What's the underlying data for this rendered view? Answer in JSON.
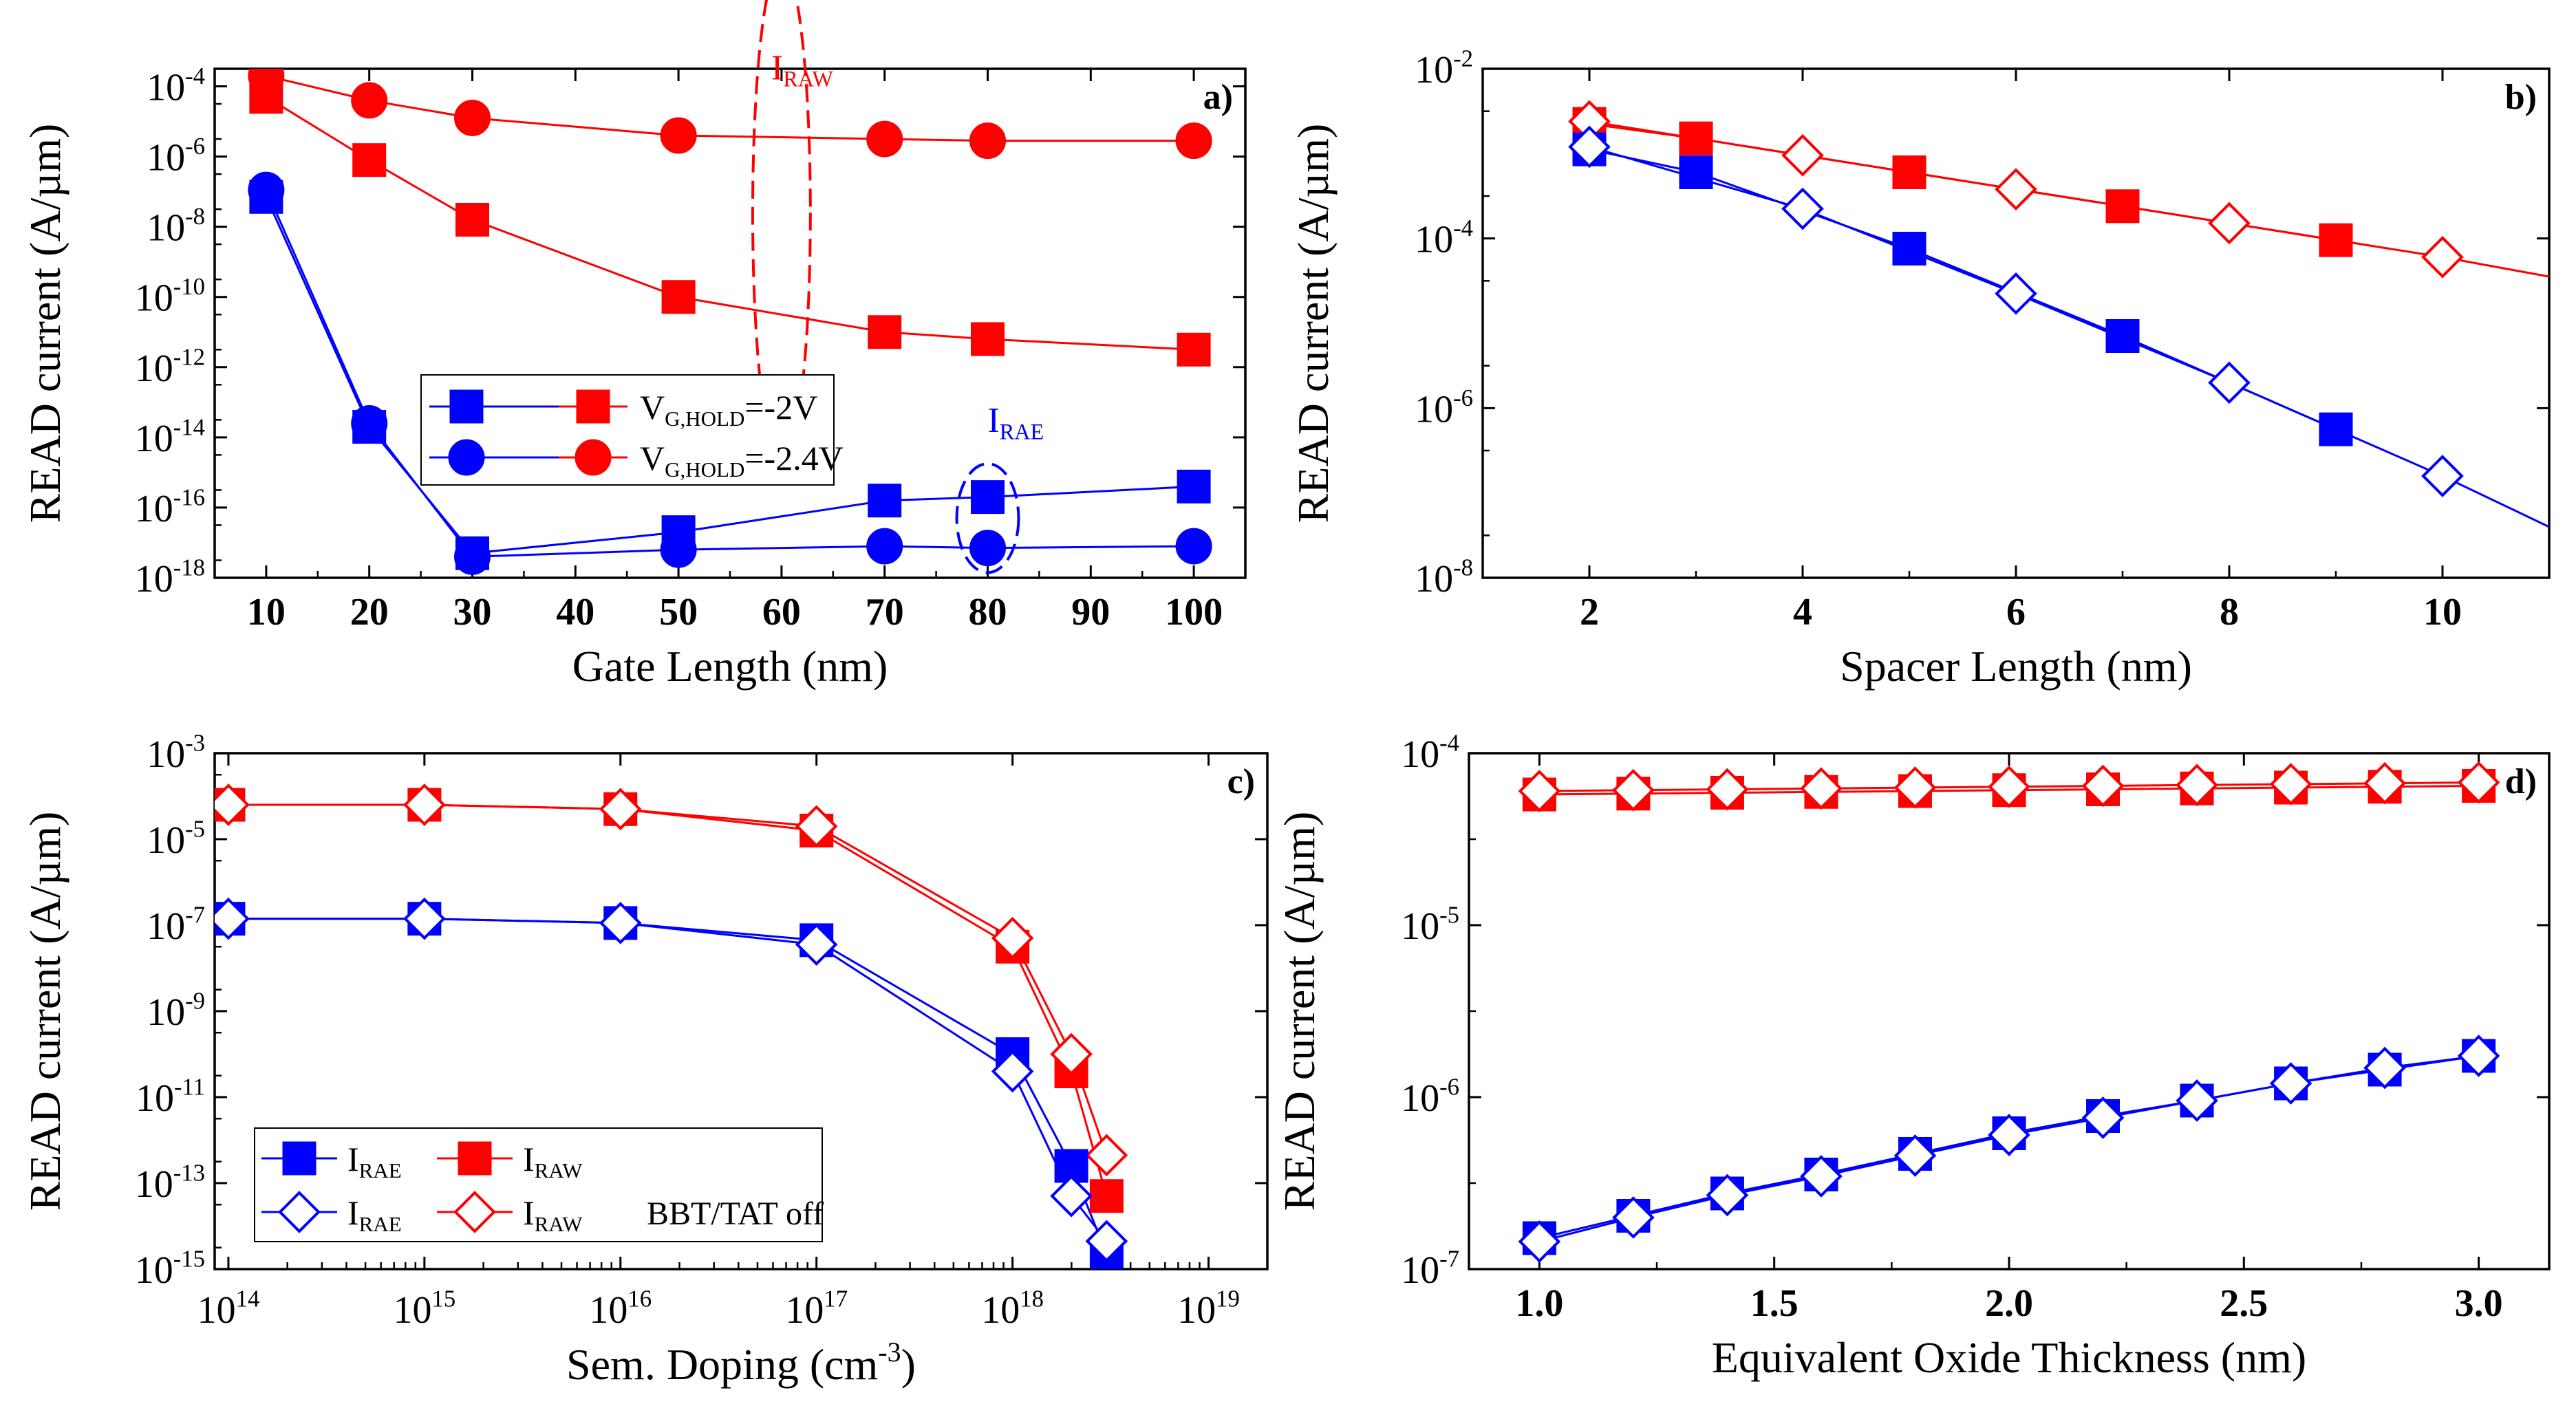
{
  "figure": {
    "colors": {
      "red": "#ff0000",
      "blue": "#0000ff",
      "axis": "#000000"
    }
  },
  "chart_data": [
    {
      "id": "a",
      "panel_label": "a)",
      "type": "line",
      "xscale": "linear",
      "yscale": "log",
      "xlim": [
        5,
        105
      ],
      "ylim_exp": [
        -18,
        -3.5
      ],
      "xticks": [
        10,
        20,
        30,
        40,
        50,
        60,
        70,
        80,
        90,
        100
      ],
      "xtick_labels": [
        "10",
        "20",
        "30",
        "40",
        "50",
        "60",
        "70",
        "80",
        "90",
        "100"
      ],
      "yticks_exp": [
        -18,
        -16,
        -14,
        -12,
        -10,
        -8,
        -6,
        -4
      ],
      "ytick_labels": [
        {
          "base": "10",
          "exp": "-18"
        },
        {
          "base": "10",
          "exp": "-16"
        },
        {
          "base": "10",
          "exp": "-14"
        },
        {
          "base": "10",
          "exp": "-12"
        },
        {
          "base": "10",
          "exp": "-10"
        },
        {
          "base": "10",
          "exp": "-8"
        },
        {
          "base": "10",
          "exp": "-6"
        },
        {
          "base": "10",
          "exp": "-4"
        }
      ],
      "xlabel": "Gate Length (nm)",
      "ylabel": "READ current (A/µm)",
      "series": [
        {
          "name": "I_RAW, V_G,HOLD=-2V",
          "color": "red",
          "marker": "square",
          "filled": true,
          "x": [
            10,
            20,
            30,
            50,
            70,
            80,
            100
          ],
          "y_exp": [
            -4.3,
            -6.1,
            -7.8,
            -10.0,
            -11.0,
            -11.2,
            -11.5
          ]
        },
        {
          "name": "I_RAW, V_G,HOLD=-2.4V",
          "color": "red",
          "marker": "circle",
          "filled": true,
          "x": [
            10,
            20,
            30,
            50,
            70,
            80,
            100
          ],
          "y_exp": [
            -3.7,
            -4.4,
            -4.9,
            -5.4,
            -5.5,
            -5.55,
            -5.55
          ]
        },
        {
          "name": "I_RAE, V_G,HOLD=-2V",
          "color": "blue",
          "marker": "square",
          "filled": true,
          "x": [
            10,
            20,
            30,
            50,
            70,
            80,
            100
          ],
          "y_exp": [
            -7.15,
            -13.7,
            -17.3,
            -16.7,
            -15.8,
            -15.7,
            -15.4
          ]
        },
        {
          "name": "I_RAE, V_G,HOLD=-2.4V",
          "color": "blue",
          "marker": "circle",
          "filled": true,
          "x": [
            10,
            20,
            30,
            50,
            70,
            80,
            100
          ],
          "y_exp": [
            -6.95,
            -13.6,
            -17.4,
            -17.2,
            -17.1,
            -17.15,
            -17.1
          ]
        }
      ],
      "annotations": [
        {
          "base": "I",
          "sub": "RAW",
          "color": "red",
          "x": 61,
          "y_exp": -3.8
        },
        {
          "base": "I",
          "sub": "RAE",
          "color": "blue",
          "x": 82,
          "y_exp": -13.85
        }
      ],
      "ellipses": [
        {
          "color": "red",
          "cx": 60,
          "cy_exp": -7.6,
          "rx": 2.8,
          "ry_exp": 7.1
        },
        {
          "color": "blue",
          "cx": 80,
          "cy_exp": -16.3,
          "rx": 3.0,
          "ry_exp": 1.55
        }
      ],
      "legend": {
        "position": "center",
        "entries": [
          {
            "base": "V",
            "sub": "G,HOLD",
            "rest": "=-2V",
            "marker": "square"
          },
          {
            "base": "V",
            "sub": "G,HOLD",
            "rest": "=-2.4V",
            "marker": "circle"
          }
        ]
      }
    },
    {
      "id": "b",
      "panel_label": "b)",
      "type": "line",
      "xscale": "linear",
      "yscale": "log",
      "xlim": [
        1,
        11
      ],
      "ylim_exp": [
        -8,
        -2
      ],
      "xticks": [
        2,
        4,
        6,
        8,
        10
      ],
      "xtick_labels": [
        "2",
        "4",
        "6",
        "8",
        "10"
      ],
      "yticks_exp": [
        -8,
        -6,
        -4,
        -2
      ],
      "ytick_labels": [
        {
          "base": "10",
          "exp": "-8"
        },
        {
          "base": "10",
          "exp": "-6"
        },
        {
          "base": "10",
          "exp": "-4"
        },
        {
          "base": "10",
          "exp": "-2"
        }
      ],
      "xlabel": "Spacer Length (nm)",
      "ylabel": "READ current (A/µm)",
      "series": [
        {
          "name": "I_RAW",
          "color": "red",
          "marker": "square",
          "filled": true,
          "x": [
            2,
            3,
            5,
            7,
            9
          ],
          "y_exp": [
            -2.65,
            -2.82,
            -3.22,
            -3.62,
            -4.02
          ]
        },
        {
          "name": "I_RAW BBT/TAT off",
          "color": "red",
          "marker": "diamond",
          "filled": false,
          "x": [
            2,
            4,
            6,
            8,
            10,
            11
          ],
          "y_exp": [
            -2.62,
            -3.02,
            -3.42,
            -3.82,
            -4.22,
            -4.45
          ]
        },
        {
          "name": "I_RAE",
          "color": "blue",
          "marker": "square",
          "filled": true,
          "x": [
            2,
            3,
            5,
            7,
            9
          ],
          "y_exp": [
            -2.95,
            -3.22,
            -4.12,
            -5.15,
            -6.25
          ]
        },
        {
          "name": "I_RAE BBT/TAT off",
          "color": "blue",
          "marker": "diamond",
          "filled": false,
          "x": [
            2,
            4,
            6,
            8,
            10,
            11
          ],
          "y_exp": [
            -2.92,
            -3.65,
            -4.65,
            -5.7,
            -6.8,
            -7.4
          ]
        }
      ],
      "annotations": [],
      "ellipses": [],
      "legend": null
    },
    {
      "id": "c",
      "panel_label": "c)",
      "type": "line",
      "xscale": "log",
      "yscale": "log",
      "xlim_exp": [
        13.93,
        19.3
      ],
      "ylim_exp": [
        -15,
        -3
      ],
      "xticks_exp": [
        14,
        15,
        16,
        17,
        18,
        19
      ],
      "xtick_labels": [
        {
          "base": "10",
          "exp": "14"
        },
        {
          "base": "10",
          "exp": "15"
        },
        {
          "base": "10",
          "exp": "16"
        },
        {
          "base": "10",
          "exp": "17"
        },
        {
          "base": "10",
          "exp": "18"
        },
        {
          "base": "10",
          "exp": "19"
        }
      ],
      "yticks_exp": [
        -15,
        -13,
        -11,
        -9,
        -7,
        -5,
        -3
      ],
      "ytick_labels": [
        {
          "base": "10",
          "exp": "-15"
        },
        {
          "base": "10",
          "exp": "-13"
        },
        {
          "base": "10",
          "exp": "-11"
        },
        {
          "base": "10",
          "exp": "-9"
        },
        {
          "base": "10",
          "exp": "-7"
        },
        {
          "base": "10",
          "exp": "-5"
        },
        {
          "base": "10",
          "exp": "-3"
        }
      ],
      "xlabel": {
        "base": "Sem. Doping (cm",
        "exp": "-3",
        "rest": ")"
      },
      "ylabel": "READ current (A/µm)",
      "series": [
        {
          "name": "I_RAW",
          "color": "red",
          "marker": "square",
          "filled": true,
          "x_exp": [
            14,
            15,
            16,
            17,
            18,
            18.3,
            18.48
          ],
          "y_exp": [
            -4.2,
            -4.2,
            -4.3,
            -4.8,
            -7.5,
            -10.4,
            -13.3
          ]
        },
        {
          "name": "I_RAW BBT/TAT off",
          "color": "red",
          "marker": "diamond",
          "filled": false,
          "x_exp": [
            14,
            15,
            16,
            17,
            18,
            18.3,
            18.48
          ],
          "y_exp": [
            -4.2,
            -4.2,
            -4.3,
            -4.7,
            -7.3,
            -10.0,
            -12.35
          ]
        },
        {
          "name": "I_RAE",
          "color": "blue",
          "marker": "square",
          "filled": true,
          "x_exp": [
            14,
            15,
            16,
            17,
            18,
            18.3,
            18.48
          ],
          "y_exp": [
            -6.85,
            -6.85,
            -6.95,
            -7.35,
            -10.0,
            -12.6,
            -14.65
          ]
        },
        {
          "name": "I_RAE BBT/TAT off",
          "color": "blue",
          "marker": "diamond",
          "filled": false,
          "x_exp": [
            14,
            15,
            16,
            17,
            18,
            18.3,
            18.48
          ],
          "y_exp": [
            -6.85,
            -6.85,
            -6.95,
            -7.45,
            -10.4,
            -13.3,
            -14.35
          ]
        }
      ],
      "annotations": [],
      "ellipses": [],
      "legend": {
        "position": "bottom-left",
        "entries": [
          {
            "base": "I",
            "sub": "RAE",
            "marker": "square",
            "color": "blue",
            "filled": true
          },
          {
            "base": "I",
            "sub": "RAW",
            "marker": "square",
            "color": "red",
            "filled": true
          },
          {
            "base": "I",
            "sub": "RAE",
            "marker": "diamond",
            "color": "blue",
            "filled": false
          },
          {
            "base": "I",
            "sub": "RAW",
            "marker": "diamond",
            "color": "red",
            "filled": false
          }
        ],
        "note": "BBT/TAT off"
      }
    },
    {
      "id": "d",
      "panel_label": "d)",
      "type": "line",
      "xscale": "linear",
      "yscale": "log",
      "xlim": [
        0.85,
        3.15
      ],
      "ylim_exp": [
        -7,
        -4
      ],
      "xticks": [
        1.0,
        1.5,
        2.0,
        2.5,
        3.0
      ],
      "xtick_labels": [
        "1.0",
        "1.5",
        "2.0",
        "2.5",
        "3.0"
      ],
      "yticks_exp": [
        -7,
        -6,
        -5,
        -4
      ],
      "ytick_labels": [
        {
          "base": "10",
          "exp": "-7"
        },
        {
          "base": "10",
          "exp": "-6"
        },
        {
          "base": "10",
          "exp": "-5"
        },
        {
          "base": "10",
          "exp": "-4"
        }
      ],
      "xlabel": "Equivalent Oxide Thickness (nm)",
      "ylabel": "READ current (A/µm)",
      "series": [
        {
          "name": "I_RAW",
          "color": "red",
          "marker": "square",
          "filled": true,
          "x": [
            1.0,
            1.2,
            1.4,
            1.6,
            1.8,
            2.0,
            2.2,
            2.4,
            2.6,
            2.8,
            3.0
          ],
          "y_exp": [
            -4.24,
            -4.235,
            -4.23,
            -4.225,
            -4.22,
            -4.215,
            -4.21,
            -4.205,
            -4.2,
            -4.195,
            -4.19
          ]
        },
        {
          "name": "I_RAW BBT/TAT off",
          "color": "red",
          "marker": "diamond",
          "filled": false,
          "x": [
            1.0,
            1.2,
            1.4,
            1.6,
            1.8,
            2.0,
            2.2,
            2.4,
            2.6,
            2.8,
            3.0
          ],
          "y_exp": [
            -4.22,
            -4.215,
            -4.21,
            -4.205,
            -4.2,
            -4.195,
            -4.19,
            -4.185,
            -4.18,
            -4.175,
            -4.17
          ]
        },
        {
          "name": "I_RAE",
          "color": "blue",
          "marker": "square",
          "filled": true,
          "x": [
            1.0,
            1.2,
            1.4,
            1.6,
            1.8,
            2.0,
            2.2,
            2.4,
            2.6,
            2.8,
            3.0
          ],
          "y_exp": [
            -6.82,
            -6.69,
            -6.56,
            -6.45,
            -6.33,
            -6.21,
            -6.11,
            -6.02,
            -5.92,
            -5.84,
            -5.76
          ]
        },
        {
          "name": "I_RAE BBT/TAT off",
          "color": "blue",
          "marker": "diamond",
          "filled": false,
          "x": [
            1.0,
            1.2,
            1.4,
            1.6,
            1.8,
            2.0,
            2.2,
            2.4,
            2.6,
            2.8,
            3.0
          ],
          "y_exp": [
            -6.84,
            -6.7,
            -6.57,
            -6.46,
            -6.34,
            -6.22,
            -6.12,
            -6.02,
            -5.92,
            -5.83,
            -5.76
          ]
        }
      ],
      "annotations": [],
      "ellipses": [],
      "legend": null
    }
  ]
}
